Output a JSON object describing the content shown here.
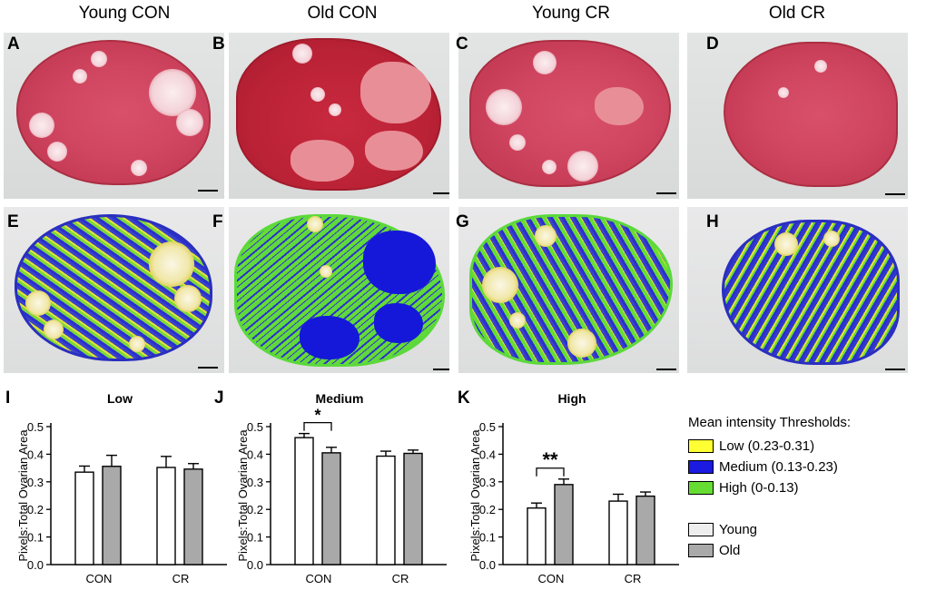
{
  "columns": [
    "Young CON",
    "Old CON",
    "Young CR",
    "Old CR"
  ],
  "panel_letters": {
    "top": [
      "A",
      "B",
      "C",
      "D"
    ],
    "middle": [
      "E",
      "F",
      "G",
      "H"
    ],
    "charts": [
      "I",
      "J",
      "K"
    ]
  },
  "colors": {
    "young_bar": "#ffffff",
    "old_bar": "#a9a9a9",
    "low": "#ffff33",
    "medium": "#1a1ae0",
    "high": "#66dd33"
  },
  "legend": {
    "title": "Mean intensity Thresholds:",
    "thresholds": [
      {
        "label": "Low (0.23-0.31)",
        "color": "#ffff33"
      },
      {
        "label": "Medium (0.13-0.23)",
        "color": "#1a1ae0"
      },
      {
        "label": "High (0-0.13)",
        "color": "#66dd33"
      }
    ],
    "groups": [
      {
        "label": "Young",
        "color": "#eeeeee"
      },
      {
        "label": "Old",
        "color": "#a9a9a9"
      }
    ]
  },
  "chart_data": [
    {
      "type": "bar",
      "title": "Low",
      "ylabel": "Pixels:Total Ovarian Area",
      "categories": [
        "CON",
        "CR"
      ],
      "ylim": [
        0,
        0.5
      ],
      "yticks": [
        "0.0",
        "0.1",
        "0.2",
        "0.3",
        "0.4",
        "0.5"
      ],
      "series": [
        {
          "name": "Young",
          "values": [
            0.335,
            0.352
          ],
          "errors": [
            0.022,
            0.04
          ]
        },
        {
          "name": "Old",
          "values": [
            0.356,
            0.346
          ],
          "errors": [
            0.04,
            0.02
          ]
        }
      ],
      "annotations": []
    },
    {
      "type": "bar",
      "title": "Medium",
      "ylabel": "Pixels:Total Ovarian Area",
      "categories": [
        "CON",
        "CR"
      ],
      "ylim": [
        0,
        0.5
      ],
      "yticks": [
        "0.0",
        "0.1",
        "0.2",
        "0.3",
        "0.4",
        "0.5"
      ],
      "series": [
        {
          "name": "Young",
          "values": [
            0.46,
            0.393
          ],
          "errors": [
            0.015,
            0.018
          ]
        },
        {
          "name": "Old",
          "values": [
            0.405,
            0.403
          ],
          "errors": [
            0.02,
            0.012
          ]
        }
      ],
      "annotations": [
        {
          "text": "*",
          "category": "CON"
        }
      ]
    },
    {
      "type": "bar",
      "title": "High",
      "ylabel": "Pixels:Total Ovarian Area",
      "categories": [
        "CON",
        "CR"
      ],
      "ylim": [
        0,
        0.5
      ],
      "yticks": [
        "0.0",
        "0.1",
        "0.2",
        "0.3",
        "0.4",
        "0.5"
      ],
      "series": [
        {
          "name": "Young",
          "values": [
            0.205,
            0.23
          ],
          "errors": [
            0.018,
            0.025
          ]
        },
        {
          "name": "Old",
          "values": [
            0.29,
            0.248
          ],
          "errors": [
            0.02,
            0.015
          ]
        }
      ],
      "annotations": [
        {
          "text": "**",
          "category": "CON"
        }
      ]
    }
  ]
}
